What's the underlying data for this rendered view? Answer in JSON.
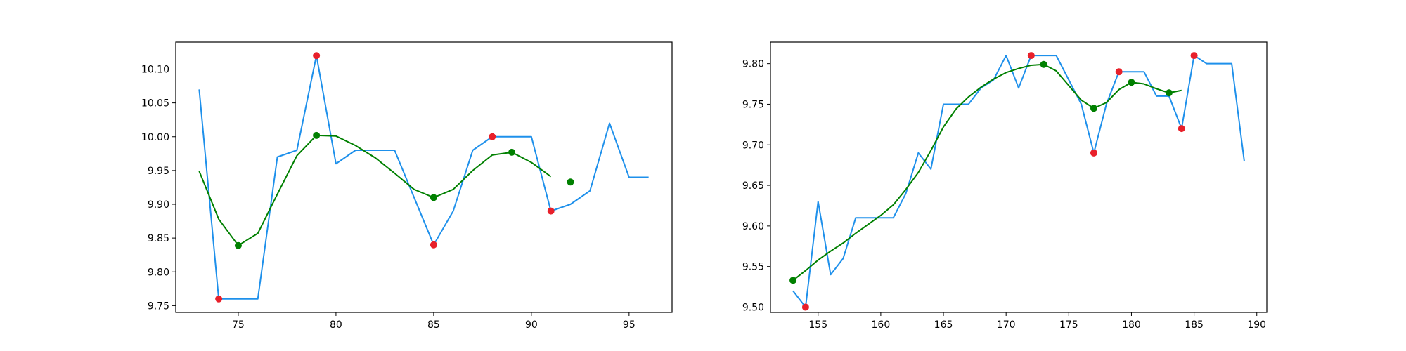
{
  "chart_data": [
    {
      "type": "line",
      "grid": false,
      "xlim": [
        71.8,
        97.2
      ],
      "ylim": [
        9.74,
        10.14
      ],
      "xticks": [
        75,
        80,
        85,
        90,
        95
      ],
      "xtick_labels": [
        "75",
        "80",
        "85",
        "90",
        "95"
      ],
      "yticks": [
        9.75,
        9.8,
        9.85,
        9.9,
        9.95,
        10.0,
        10.05,
        10.1
      ],
      "ytick_labels": [
        "9.75",
        "9.80",
        "9.85",
        "9.90",
        "9.95",
        "10.00",
        "10.05",
        "10.10"
      ],
      "series": [
        {
          "kind": "line",
          "color": "#1E90EB",
          "x": [
            73,
            74,
            75,
            76,
            77,
            78,
            79,
            80,
            81,
            82,
            83,
            84,
            85,
            86,
            87,
            88,
            89,
            90,
            91,
            92,
            93,
            94,
            95,
            96
          ],
          "y": [
            10.07,
            9.76,
            9.76,
            9.76,
            9.97,
            9.98,
            10.12,
            9.96,
            9.98,
            9.98,
            9.98,
            9.91,
            9.84,
            9.89,
            9.98,
            10.0,
            10.0,
            10.0,
            9.89,
            9.9,
            9.92,
            10.02,
            9.94,
            9.94
          ]
        },
        {
          "kind": "line",
          "color": "#008000",
          "x": [
            73,
            74,
            75,
            76,
            77,
            78,
            79,
            80,
            81,
            82,
            83,
            84,
            85,
            86,
            87,
            88,
            89,
            90,
            91
          ],
          "y": [
            9.949,
            9.878,
            9.839,
            9.857,
            9.915,
            9.972,
            10.002,
            10.001,
            9.987,
            9.969,
            9.946,
            9.922,
            9.91,
            9.922,
            9.95,
            9.973,
            9.977,
            9.962,
            9.941
          ]
        },
        {
          "kind": "scatter",
          "color": "#E8202A",
          "x": [
            74,
            79,
            85,
            88,
            91
          ],
          "y": [
            9.76,
            10.12,
            9.84,
            10.0,
            9.89
          ]
        },
        {
          "kind": "scatter",
          "color": "#008000",
          "x": [
            75,
            79,
            85,
            89,
            92
          ],
          "y": [
            9.839,
            10.002,
            9.91,
            9.977,
            9.933
          ]
        }
      ]
    },
    {
      "type": "line",
      "grid": false,
      "xlim": [
        151.2,
        190.8
      ],
      "ylim": [
        9.4935,
        9.8265
      ],
      "xticks": [
        155,
        160,
        165,
        170,
        175,
        180,
        185,
        190
      ],
      "xtick_labels": [
        "155",
        "160",
        "165",
        "170",
        "175",
        "180",
        "185",
        "190"
      ],
      "yticks": [
        9.5,
        9.55,
        9.6,
        9.65,
        9.7,
        9.75,
        9.8
      ],
      "ytick_labels": [
        "9.50",
        "9.55",
        "9.60",
        "9.65",
        "9.70",
        "9.75",
        "9.80"
      ],
      "series": [
        {
          "kind": "line",
          "color": "#1E90EB",
          "x": [
            153,
            154,
            155,
            156,
            157,
            158,
            159,
            160,
            161,
            162,
            163,
            164,
            165,
            166,
            167,
            168,
            169,
            170,
            171,
            172,
            173,
            174,
            175,
            176,
            177,
            178,
            179,
            180,
            181,
            182,
            183,
            184,
            185,
            186,
            187,
            188,
            189
          ],
          "y": [
            9.52,
            9.5,
            9.63,
            9.54,
            9.56,
            9.61,
            9.61,
            9.61,
            9.61,
            9.64,
            9.69,
            9.67,
            9.75,
            9.75,
            9.75,
            9.77,
            9.78,
            9.81,
            9.77,
            9.81,
            9.81,
            9.81,
            9.78,
            9.75,
            9.69,
            9.75,
            9.79,
            9.79,
            9.79,
            9.76,
            9.76,
            9.72,
            9.81,
            9.8,
            9.8,
            9.8,
            9.68
          ]
        },
        {
          "kind": "line",
          "color": "#008000",
          "x": [
            153,
            154,
            155,
            156,
            157,
            158,
            159,
            160,
            161,
            162,
            163,
            164,
            165,
            166,
            167,
            168,
            169,
            170,
            171,
            172,
            173,
            174,
            175,
            176,
            177,
            178,
            179,
            180,
            181,
            182,
            183,
            184
          ],
          "y": [
            9.533,
            9.545,
            9.558,
            9.569,
            9.579,
            9.591,
            9.602,
            9.613,
            9.626,
            9.645,
            9.666,
            9.693,
            9.722,
            9.744,
            9.759,
            9.771,
            9.781,
            9.789,
            9.794,
            9.798,
            9.799,
            9.791,
            9.773,
            9.755,
            9.745,
            9.752,
            9.768,
            9.777,
            9.775,
            9.769,
            9.764,
            9.767
          ]
        },
        {
          "kind": "scatter",
          "color": "#E8202A",
          "x": [
            154,
            172,
            177,
            179,
            184,
            185
          ],
          "y": [
            9.5,
            9.81,
            9.69,
            9.79,
            9.72,
            9.81
          ]
        },
        {
          "kind": "scatter",
          "color": "#008000",
          "x": [
            153,
            173,
            177,
            180,
            183
          ],
          "y": [
            9.533,
            9.799,
            9.745,
            9.777,
            9.764
          ]
        }
      ]
    }
  ]
}
